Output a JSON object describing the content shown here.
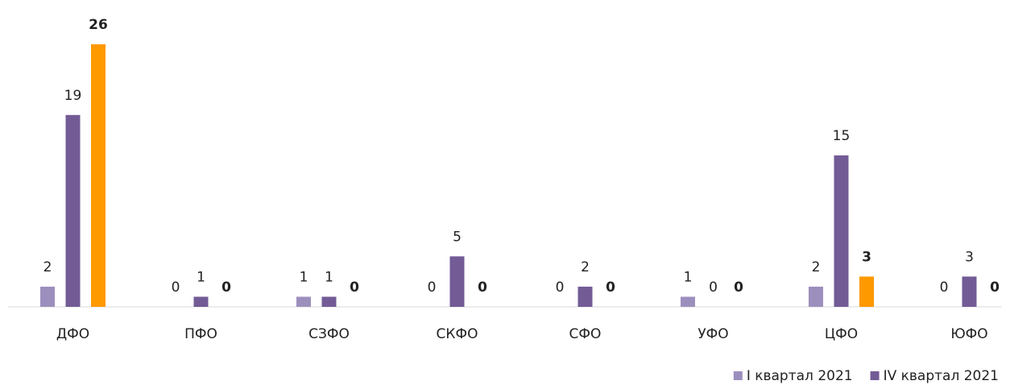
{
  "chart_data": {
    "type": "bar",
    "categories": [
      "ДФО",
      "ПФО",
      "СЗФО",
      "СКФО",
      "СФО",
      "УФО",
      "ЦФО",
      "ЮФО"
    ],
    "series": [
      {
        "name": "I квартал 2021",
        "color": "#9d8fbd",
        "values": [
          2,
          0,
          1,
          0,
          0,
          1,
          2,
          0
        ]
      },
      {
        "name": "IV квартал 2021",
        "color": "#735b96",
        "values": [
          19,
          1,
          1,
          5,
          2,
          0,
          15,
          3
        ]
      },
      {
        "color": "#ff9900",
        "bold": true,
        "values": [
          26,
          0,
          0,
          0,
          0,
          0,
          3,
          0
        ]
      }
    ],
    "legend": "bottom-right"
  }
}
